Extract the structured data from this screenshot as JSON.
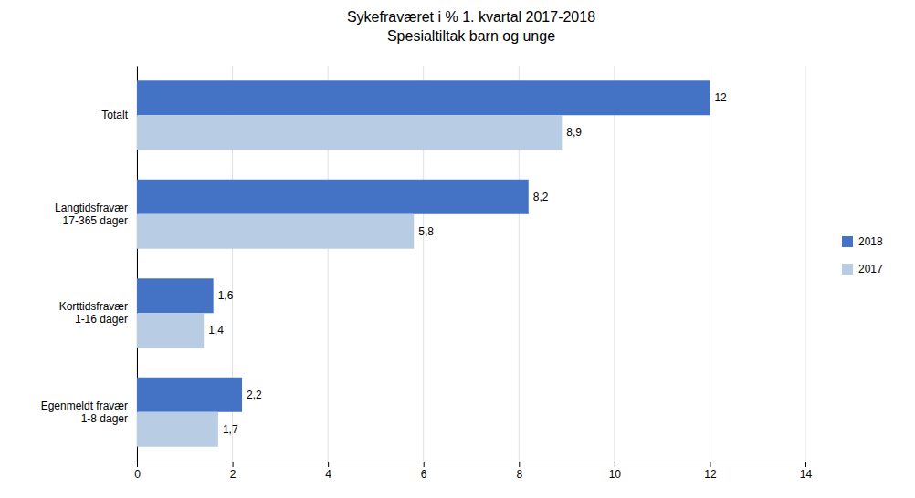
{
  "chart_data": {
    "type": "bar",
    "orientation": "horizontal",
    "title": "Sykefraværet i %  1. kvartal 2017-2018",
    "subtitle": "Spesialtiltak barn og unge",
    "categories": [
      "Egenmeldt fravær\n1-8 dager",
      "Korttidsfravær\n1-16 dager",
      "Langtidsfravær\n17-365 dager",
      "Totalt"
    ],
    "series": [
      {
        "name": "2018",
        "color": "#4472C4",
        "values": [
          2.2,
          1.6,
          8.2,
          12.0
        ],
        "value_labels": [
          "2,2",
          "1,6",
          "8,2",
          "12"
        ]
      },
      {
        "name": "2017",
        "color": "#B8CCE4",
        "values": [
          1.7,
          1.4,
          5.8,
          8.9
        ],
        "value_labels": [
          "1,7",
          "1,4",
          "5,8",
          "8,9"
        ]
      }
    ],
    "xlim": [
      0,
      14
    ],
    "xticks": [
      0,
      2,
      4,
      6,
      8,
      10,
      12,
      14
    ],
    "grid": true,
    "legend": "right",
    "data_labels": true
  }
}
